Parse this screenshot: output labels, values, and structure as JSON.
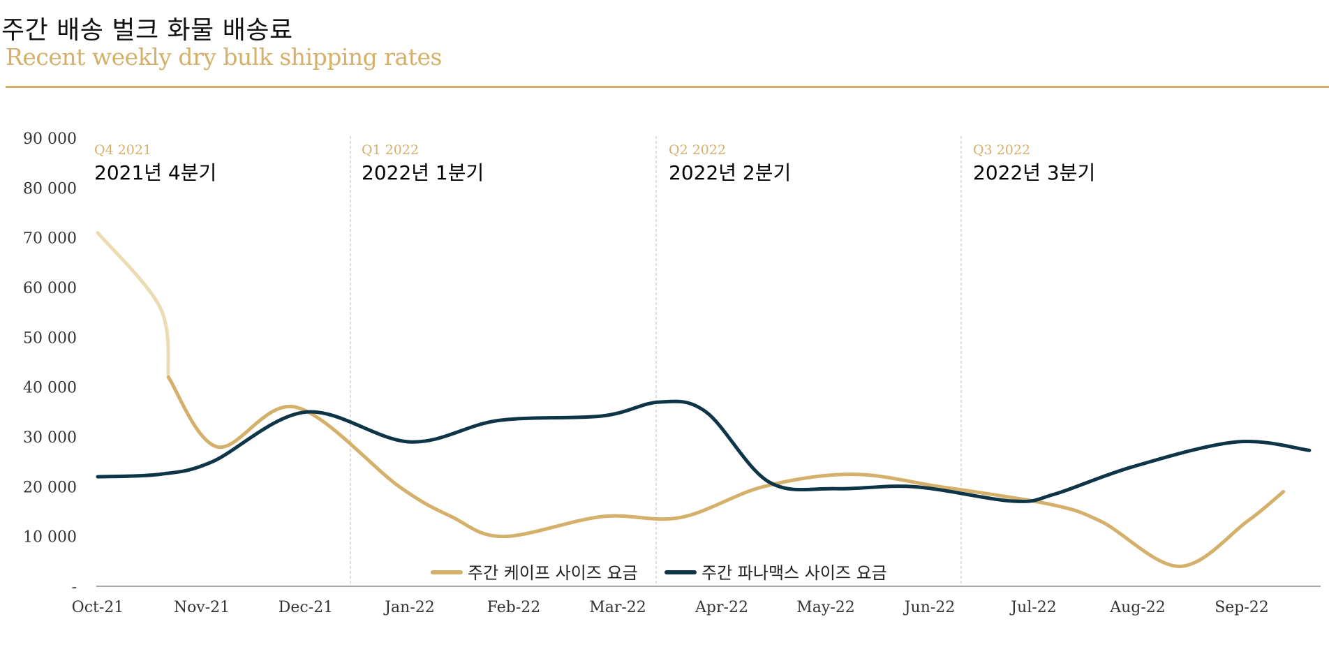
{
  "header": {
    "title_ko": "주간 배송 벌크 화물 배송료",
    "title_en": "Recent weekly dry bulk shipping rates"
  },
  "colors": {
    "cape": "#d4b06a",
    "cape_light": "#ecdcb4",
    "panamax": "#0d3547",
    "accent": "#d4b06a"
  },
  "chart_data": {
    "type": "line",
    "title": "주간 배송 벌크 화물 배송료",
    "subtitle": "Recent weekly dry bulk shipping rates",
    "x": [
      "Oct-21",
      "Nov-21",
      "Dec-21",
      "Jan-22",
      "Feb-22",
      "Mar-22",
      "Apr-22",
      "May-22",
      "Jun-22",
      "Jul-22",
      "Aug-22",
      "Sep-22"
    ],
    "x_positions": [
      0,
      1,
      2,
      3,
      4,
      5,
      6,
      7,
      8,
      9,
      10,
      11
    ],
    "ylim": [
      0,
      90000
    ],
    "yticks": [
      0,
      10000,
      20000,
      30000,
      40000,
      50000,
      60000,
      70000,
      80000,
      90000
    ],
    "ytick_labels": [
      "-",
      "10 000",
      "20 000",
      "30 000",
      "40 000",
      "50 000",
      "60 000",
      "70 000",
      "80 000",
      "90 000"
    ],
    "grid": false,
    "legend_position": "bottom-center",
    "series": [
      {
        "name": "주간 케이프 사이즈 요금",
        "color": "#d4b06a",
        "points": [
          [
            0,
            71000
          ],
          [
            0.6,
            56000
          ],
          [
            0.68,
            42000
          ],
          [
            1.15,
            28000
          ],
          [
            1.9,
            36000
          ],
          [
            2.9,
            20000
          ],
          [
            3.4,
            14000
          ],
          [
            3.9,
            10000
          ],
          [
            4.85,
            14000
          ],
          [
            5.6,
            13800
          ],
          [
            6.4,
            20000
          ],
          [
            7.25,
            22500
          ],
          [
            8.1,
            20000
          ],
          [
            9.15,
            16500
          ],
          [
            9.65,
            13000
          ],
          [
            10.4,
            4000
          ],
          [
            11.05,
            13000
          ],
          [
            11.4,
            19000
          ]
        ]
      },
      {
        "name": "주간 파나맥스 사이즈 요금",
        "color": "#0d3547",
        "points": [
          [
            0,
            22000
          ],
          [
            0.6,
            22500
          ],
          [
            1.1,
            25000
          ],
          [
            2.0,
            35000
          ],
          [
            3.0,
            29000
          ],
          [
            3.85,
            33300
          ],
          [
            4.85,
            34200
          ],
          [
            5.4,
            37000
          ],
          [
            5.85,
            35000
          ],
          [
            6.45,
            21000
          ],
          [
            7.1,
            19600
          ],
          [
            7.85,
            20000
          ],
          [
            8.8,
            17100
          ],
          [
            9.2,
            18500
          ],
          [
            9.95,
            24000
          ],
          [
            10.95,
            29000
          ],
          [
            11.65,
            27300
          ]
        ]
      }
    ],
    "quarters": [
      {
        "small": "Q4 2021",
        "big": "2021년 4분기"
      },
      {
        "small": "Q1 2022",
        "big": "2022년 1분기"
      },
      {
        "small": "Q2 2022",
        "big": "2022년 2분기"
      },
      {
        "small": "Q3 2022",
        "big": "2022년 3분기"
      }
    ]
  }
}
